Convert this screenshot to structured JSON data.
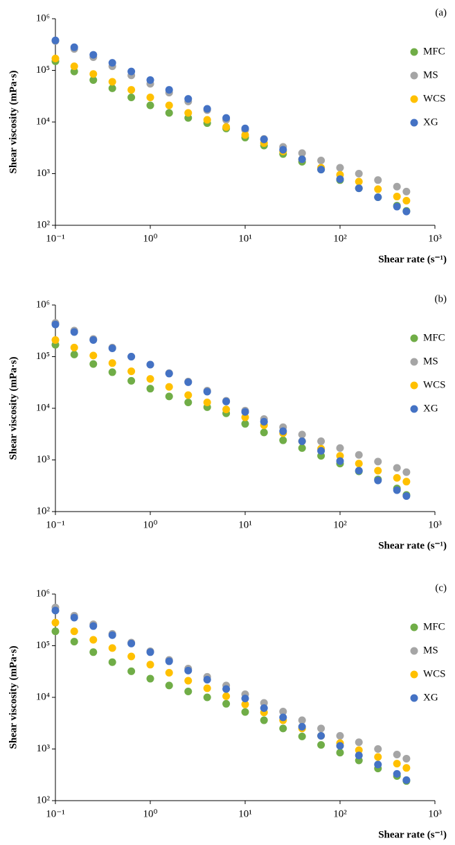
{
  "chart_data": [
    {
      "type": "scatter",
      "title": "(a)",
      "xlabel": "Shear rate (s⁻¹)",
      "ylabel": "Shear viscosity (mPa·s)",
      "log_x": true,
      "log_y": true,
      "legend": "right",
      "x": [
        0.1,
        0.158,
        0.251,
        0.398,
        0.631,
        1,
        1.58,
        2.51,
        3.98,
        6.31,
        10,
        15.8,
        25.1,
        39.8,
        63.1,
        100,
        158,
        251,
        398,
        501
      ],
      "series": [
        {
          "name": "MFC",
          "color": "#70ad47",
          "values": [
            150000,
            95000,
            65000,
            45000,
            30000,
            21000,
            15000,
            12000,
            9500,
            7500,
            5000,
            3500,
            2400,
            1700,
            1200,
            750,
            520,
            350,
            240,
            190
          ]
        },
        {
          "name": "MS",
          "color": "#a5a5a5",
          "values": [
            370000,
            260000,
            180000,
            120000,
            80000,
            55000,
            37000,
            25000,
            17000,
            11000,
            7000,
            4700,
            3300,
            2500,
            1800,
            1300,
            1000,
            750,
            560,
            450
          ]
        },
        {
          "name": "WCS",
          "color": "#ffc000",
          "values": [
            170000,
            120000,
            85000,
            60000,
            42000,
            30000,
            21000,
            15000,
            11000,
            8000,
            5600,
            3900,
            2700,
            1900,
            1300,
            950,
            700,
            500,
            360,
            300
          ]
        },
        {
          "name": "XG",
          "color": "#4472c4",
          "values": [
            380000,
            280000,
            200000,
            140000,
            95000,
            65000,
            42000,
            28000,
            18000,
            12000,
            7500,
            4600,
            2900,
            1900,
            1200,
            780,
            520,
            350,
            230,
            185
          ]
        }
      ],
      "xlim": [
        0.1,
        1000
      ],
      "ylim": [
        100,
        1000000
      ],
      "xticks": [
        {
          "value": 0.1,
          "label": "10⁻¹"
        },
        {
          "value": 1,
          "label": "10⁰"
        },
        {
          "value": 10,
          "label": "10¹"
        },
        {
          "value": 100,
          "label": "10²"
        },
        {
          "value": 1000,
          "label": "10³"
        }
      ],
      "yticks": [
        {
          "value": 100,
          "label": "10²"
        },
        {
          "value": 1000,
          "label": "10³"
        },
        {
          "value": 10000,
          "label": "10⁴"
        },
        {
          "value": 100000,
          "label": "10⁵"
        },
        {
          "value": 1000000,
          "label": "10⁶"
        }
      ]
    },
    {
      "type": "scatter",
      "title": "(b)",
      "xlabel": "Shear rate (s⁻¹)",
      "ylabel": "Shear viscosity (mPa·s)",
      "log_x": true,
      "log_y": true,
      "legend": "right",
      "x": [
        0.1,
        0.158,
        0.251,
        0.398,
        0.631,
        1,
        1.58,
        2.51,
        3.98,
        6.31,
        10,
        15.8,
        25.1,
        39.8,
        63.1,
        100,
        158,
        251,
        398,
        501
      ],
      "series": [
        {
          "name": "MFC",
          "color": "#70ad47",
          "values": [
            170000,
            110000,
            72000,
            50000,
            34000,
            24000,
            17000,
            13000,
            10500,
            8000,
            5000,
            3400,
            2400,
            1700,
            1200,
            850,
            600,
            420,
            280,
            210
          ]
        },
        {
          "name": "MS",
          "color": "#a5a5a5",
          "values": [
            450000,
            320000,
            220000,
            150000,
            100000,
            70000,
            48000,
            33000,
            22000,
            14000,
            9000,
            6200,
            4300,
            3100,
            2300,
            1700,
            1250,
            930,
            700,
            580
          ]
        },
        {
          "name": "WCS",
          "color": "#ffc000",
          "values": [
            210000,
            150000,
            105000,
            75000,
            52000,
            37000,
            26000,
            18000,
            13000,
            9500,
            6700,
            4700,
            3300,
            2300,
            1650,
            1200,
            850,
            620,
            450,
            380
          ]
        },
        {
          "name": "XG",
          "color": "#4472c4",
          "values": [
            420000,
            300000,
            210000,
            145000,
            100000,
            70000,
            47000,
            32000,
            21000,
            13500,
            8500,
            5500,
            3600,
            2300,
            1500,
            950,
            620,
            400,
            260,
            200
          ]
        }
      ],
      "xlim": [
        0.1,
        1000
      ],
      "ylim": [
        100,
        1000000
      ],
      "xticks": [
        {
          "value": 0.1,
          "label": "10⁻¹"
        },
        {
          "value": 1,
          "label": "10⁰"
        },
        {
          "value": 10,
          "label": "10¹"
        },
        {
          "value": 100,
          "label": "10²"
        },
        {
          "value": 1000,
          "label": "10³"
        }
      ],
      "yticks": [
        {
          "value": 100,
          "label": "10²"
        },
        {
          "value": 1000,
          "label": "10³"
        },
        {
          "value": 10000,
          "label": "10⁴"
        },
        {
          "value": 100000,
          "label": "10⁵"
        },
        {
          "value": 1000000,
          "label": "10⁶"
        }
      ]
    },
    {
      "type": "scatter",
      "title": "(c)",
      "xlabel": "Shear rate (s⁻¹)",
      "ylabel": "Shear viscosity (mPa·s)",
      "log_x": true,
      "log_y": true,
      "legend": "right",
      "x": [
        0.1,
        0.158,
        0.251,
        0.398,
        0.631,
        1,
        1.58,
        2.51,
        3.98,
        6.31,
        10,
        15.8,
        25.1,
        39.8,
        63.1,
        100,
        158,
        251,
        398,
        501
      ],
      "series": [
        {
          "name": "MFC",
          "color": "#70ad47",
          "values": [
            190000,
            120000,
            75000,
            48000,
            32000,
            23000,
            17000,
            13000,
            10000,
            7500,
            5200,
            3600,
            2500,
            1750,
            1200,
            850,
            600,
            420,
            300,
            240
          ]
        },
        {
          "name": "MS",
          "color": "#a5a5a5",
          "values": [
            550000,
            380000,
            260000,
            170000,
            115000,
            78000,
            53000,
            36000,
            25000,
            17000,
            11500,
            7800,
            5300,
            3600,
            2500,
            1800,
            1350,
            1000,
            780,
            650
          ]
        },
        {
          "name": "WCS",
          "color": "#ffc000",
          "values": [
            280000,
            190000,
            130000,
            90000,
            62000,
            43000,
            30000,
            21000,
            15000,
            10500,
            7300,
            5100,
            3600,
            2500,
            1800,
            1300,
            950,
            700,
            520,
            430
          ]
        },
        {
          "name": "XG",
          "color": "#4472c4",
          "values": [
            480000,
            350000,
            240000,
            160000,
            110000,
            75000,
            50000,
            33000,
            22000,
            14500,
            9500,
            6200,
            4100,
            2700,
            1800,
            1150,
            750,
            500,
            330,
            250
          ]
        }
      ],
      "xlim": [
        0.1,
        1000
      ],
      "ylim": [
        100,
        1000000
      ],
      "xticks": [
        {
          "value": 0.1,
          "label": "10⁻¹"
        },
        {
          "value": 1,
          "label": "10⁰"
        },
        {
          "value": 10,
          "label": "10¹"
        },
        {
          "value": 100,
          "label": "10²"
        },
        {
          "value": 1000,
          "label": "10³"
        }
      ],
      "yticks": [
        {
          "value": 100,
          "label": "10²"
        },
        {
          "value": 1000,
          "label": "10³"
        },
        {
          "value": 10000,
          "label": "10⁴"
        },
        {
          "value": 100000,
          "label": "10⁵"
        },
        {
          "value": 1000000,
          "label": "10⁶"
        }
      ]
    }
  ]
}
